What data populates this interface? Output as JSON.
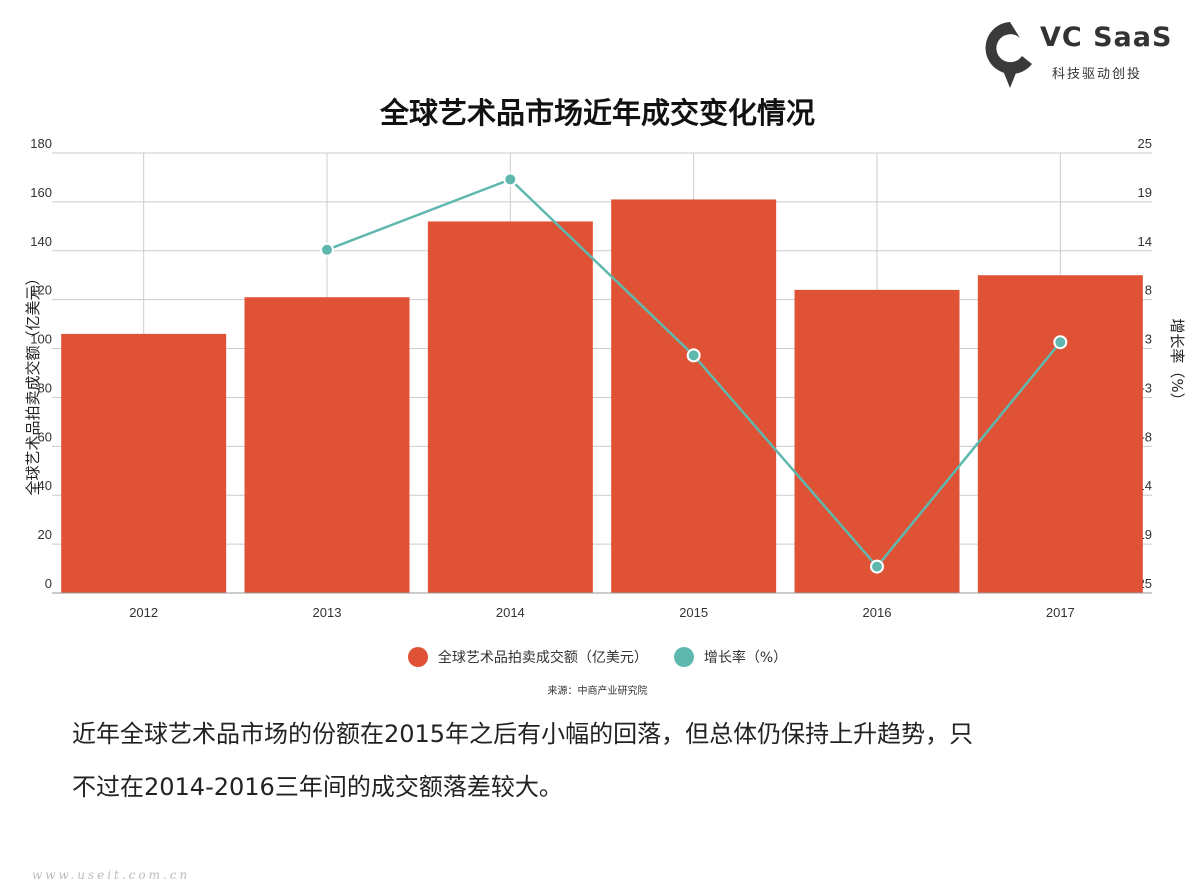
{
  "brand": {
    "name": "VC SaaS",
    "tagline": "科技驱动创投"
  },
  "title": "全球艺术品市场近年成交变化情况",
  "legend": {
    "bar_label": "全球艺术品拍卖成交额（亿美元）",
    "line_label": "增长率（%）"
  },
  "source": "来源：中商产业研究院",
  "paragraph": {
    "line1": "近年全球艺术品市场的份额在2015年之后有小幅的回落，但总体仍保持上升趋势，只",
    "line2": "不过在2014-2016三年间的成交额落差较大。"
  },
  "watermark": "www.useit.com.cn",
  "colors": {
    "bar": "#e05236",
    "line": "#5fb8ae",
    "grid": "#cccccc"
  },
  "chart_data": {
    "type": "bar",
    "categories": [
      "2012",
      "2013",
      "2014",
      "2015",
      "2016",
      "2017"
    ],
    "series": [
      {
        "name": "全球艺术品拍卖成交额（亿美元）",
        "type": "bar",
        "axis": "left",
        "values": [
          106,
          121,
          152,
          161,
          124,
          130
        ]
      },
      {
        "name": "增长率（%）",
        "type": "line",
        "axis": "right",
        "values": [
          null,
          14,
          22,
          2,
          -22,
          3.5
        ]
      }
    ],
    "ylabel": "全球艺术品拍卖成交额（亿美元）",
    "y2label": "增长率（%）",
    "ylim": [
      0,
      180
    ],
    "y2lim": [
      -25,
      25
    ],
    "yticks": [
      "0",
      "20",
      "40",
      "60",
      "80",
      "100",
      "120",
      "140",
      "160",
      "180"
    ],
    "y2ticks": [
      "-25",
      "-19",
      "-14",
      "-8",
      "-3",
      "3",
      "8",
      "14",
      "19",
      "25"
    ],
    "grid": true,
    "legend_position": "bottom"
  }
}
